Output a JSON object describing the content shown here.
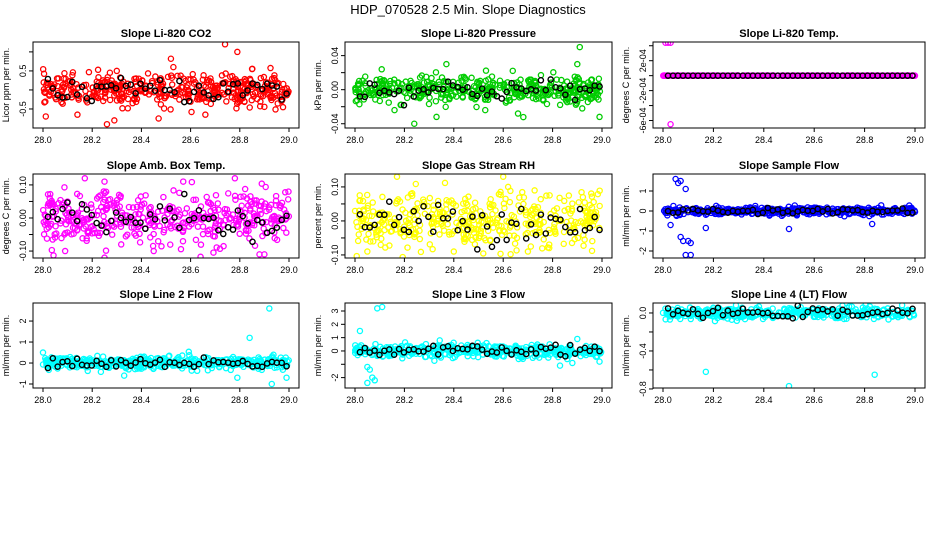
{
  "title": "HDP_070528  2.5 Min. Slope Diagnostics",
  "chart_data": [
    {
      "type": "scatter",
      "title": "Slope Li-820 CO2",
      "ylabel": "Licor ppm per min.",
      "color": "#ff0000",
      "xlim": [
        28.0,
        29.0
      ],
      "xticks": [
        "28.0",
        "28.2",
        "28.4",
        "28.6",
        "28.8",
        "29.0"
      ],
      "ylim": [
        -1.0,
        1.26
      ],
      "yticks": [
        -0.5,
        0,
        0.5,
        1.0
      ],
      "ytick_labels": [
        "-0.5",
        "",
        "0.5",
        ""
      ],
      "outliers": [
        [
          28.74,
          1.2
        ],
        [
          28.79,
          1.0
        ],
        [
          28.52,
          0.82
        ],
        [
          28.53,
          0.6
        ],
        [
          28.3,
          0.5
        ],
        [
          28.85,
          0.55
        ],
        [
          28.26,
          -0.9
        ],
        [
          28.29,
          -0.8
        ],
        [
          28.47,
          -0.75
        ],
        [
          28.14,
          -0.65
        ],
        [
          28.66,
          -0.65
        ]
      ]
    },
    {
      "type": "scatter",
      "title": "Slope Li-820 Pressure",
      "ylabel": "kPa per min.",
      "color": "#00cc00",
      "xlim": [
        28.0,
        29.0
      ],
      "xticks": [
        "28.0",
        "28.2",
        "28.4",
        "28.6",
        "28.8",
        "29.0"
      ],
      "ylim": [
        -0.045,
        0.056
      ],
      "yticks": [
        -0.04,
        -0.02,
        0,
        0.02,
        0.04
      ],
      "ytick_labels": [
        "-0.04",
        "",
        "0.00",
        "",
        "0.04"
      ],
      "outliers": [
        [
          28.91,
          0.05
        ],
        [
          28.9,
          0.03
        ],
        [
          28.37,
          0.03
        ],
        [
          28.24,
          -0.04
        ],
        [
          28.99,
          -0.032
        ],
        [
          28.66,
          -0.028
        ],
        [
          28.33,
          -0.032
        ],
        [
          28.16,
          -0.024
        ],
        [
          28.92,
          -0.022
        ]
      ]
    },
    {
      "type": "scatter",
      "title": "Slope Li-820 Temp.",
      "ylabel": "degrees C per min.",
      "color": "#ff00ff",
      "xlim": [
        28.0,
        29.0
      ],
      "xticks": [
        "28.0",
        "28.2",
        "28.4",
        "28.6",
        "28.8",
        "29.0"
      ],
      "ylim": [
        -0.0007,
        0.00045
      ],
      "yticks": [
        -0.0006,
        -0.0004,
        -0.0002,
        0,
        0.0002,
        0.0004
      ],
      "ytick_labels": [
        "-6e-04",
        "",
        "-2e-04",
        "",
        "2e-04",
        ""
      ],
      "outliers": [
        [
          28.01,
          0.00044
        ],
        [
          28.02,
          0.00044
        ],
        [
          28.03,
          0.00044
        ],
        [
          28.03,
          -0.00065
        ]
      ]
    },
    {
      "type": "scatter",
      "title": "Slope Amb. Box Temp.",
      "ylabel": "degrees C per min.",
      "color": "#ff00ff",
      "xlim": [
        28.0,
        29.0
      ],
      "xticks": [
        "28.0",
        "28.2",
        "28.4",
        "28.6",
        "28.8",
        "29.0"
      ],
      "ylim": [
        -0.121,
        0.133
      ],
      "yticks": [
        -0.1,
        -0.05,
        0,
        0.05,
        0.1
      ],
      "ytick_labels": [
        "-0.10",
        "",
        "0.00",
        "",
        "0.10"
      ],
      "outliers": [
        [
          28.17,
          0.12
        ],
        [
          28.25,
          0.11
        ],
        [
          28.78,
          0.12
        ],
        [
          28.57,
          0.11
        ],
        [
          28.25,
          -0.12
        ],
        [
          28.88,
          -0.11
        ],
        [
          28.9,
          -0.11
        ],
        [
          28.09,
          -0.1
        ],
        [
          28.45,
          -0.1
        ]
      ]
    },
    {
      "type": "scatter",
      "title": "Slope Gas Stream RH",
      "ylabel": "percent per min.",
      "color": "#ffff00",
      "xlim": [
        28.0,
        29.0
      ],
      "xticks": [
        "28.0",
        "28.2",
        "28.4",
        "28.6",
        "28.8",
        "29.0"
      ],
      "ylim": [
        -0.109,
        0.138
      ],
      "yticks": [
        -0.1,
        -0.05,
        0,
        0.05,
        0.1
      ],
      "ytick_labels": [
        "-0.10",
        "",
        "0.00",
        "",
        "0.10"
      ],
      "outliers": [
        [
          28.17,
          0.13
        ],
        [
          28.6,
          0.13
        ],
        [
          28.62,
          0.1
        ],
        [
          28.05,
          -0.09
        ],
        [
          28.4,
          -0.09
        ],
        [
          28.7,
          -0.09
        ]
      ]
    },
    {
      "type": "scatter",
      "title": "Slope Sample Flow",
      "ylabel": "ml/min per min.",
      "color": "#0000ff",
      "xlim": [
        28.0,
        29.0
      ],
      "xticks": [
        "28.0",
        "28.2",
        "28.4",
        "28.6",
        "28.8",
        "29.0"
      ],
      "ylim": [
        -2.35,
        1.85
      ],
      "yticks": [
        -2,
        -1,
        0,
        1
      ],
      "ytick_labels": [
        "-2",
        "-1",
        "0",
        "1"
      ],
      "outliers": [
        [
          28.05,
          1.6
        ],
        [
          28.07,
          1.5
        ],
        [
          28.06,
          1.4
        ],
        [
          28.09,
          1.1
        ],
        [
          28.07,
          -1.3
        ],
        [
          28.08,
          -1.5
        ],
        [
          28.1,
          -1.5
        ],
        [
          28.11,
          -1.6
        ],
        [
          28.09,
          -2.2
        ],
        [
          28.11,
          -2.2
        ],
        [
          28.5,
          -0.9
        ],
        [
          28.17,
          -0.85
        ],
        [
          28.83,
          -0.65
        ],
        [
          28.03,
          -0.7
        ]
      ]
    },
    {
      "type": "scatter",
      "title": "Slope Line 2 Flow",
      "ylabel": "ml/min per min.",
      "color": "#00ffff",
      "xlim": [
        28.0,
        29.0
      ],
      "xticks": [
        "28.0",
        "28.2",
        "28.4",
        "28.6",
        "28.8",
        "29.0"
      ],
      "ylim": [
        -1.19,
        2.86
      ],
      "yticks": [
        -1,
        0,
        1,
        2
      ],
      "ytick_labels": [
        "-1",
        "0",
        "1",
        "2"
      ],
      "outliers": [
        [
          28.92,
          2.6
        ],
        [
          28.84,
          1.2
        ],
        [
          28.93,
          -1.0
        ],
        [
          28.99,
          -0.7
        ],
        [
          28.79,
          -0.7
        ],
        [
          28.33,
          -0.6
        ],
        [
          28.0,
          0.5
        ]
      ]
    },
    {
      "type": "scatter",
      "title": "Slope Line 3 Flow",
      "ylabel": "ml/min per min.",
      "color": "#00ffff",
      "xlim": [
        28.0,
        29.0
      ],
      "xticks": [
        "28.0",
        "28.2",
        "28.4",
        "28.6",
        "28.8",
        "29.0"
      ],
      "ylim": [
        -2.78,
        3.6
      ],
      "yticks": [
        -2,
        -1,
        0,
        1,
        2,
        3
      ],
      "ytick_labels": [
        "-2",
        "",
        "0",
        "1",
        "2",
        "3"
      ],
      "outliers": [
        [
          28.09,
          3.2
        ],
        [
          28.11,
          3.3
        ],
        [
          28.02,
          1.5
        ],
        [
          28.05,
          -1.2
        ],
        [
          28.06,
          -1.4
        ],
        [
          28.05,
          -2.4
        ],
        [
          28.07,
          -2.0
        ],
        [
          28.08,
          -2.2
        ],
        [
          28.83,
          -1.1
        ],
        [
          28.88,
          -0.9
        ],
        [
          28.99,
          -0.8
        ],
        [
          28.9,
          0.9
        ]
      ]
    },
    {
      "type": "scatter",
      "title": "Slope Line 4 (LT) Flow",
      "ylabel": "ml/min per min.",
      "color": "#00ffff",
      "xlim": [
        28.0,
        29.0
      ],
      "xticks": [
        "28.0",
        "28.2",
        "28.4",
        "28.6",
        "28.8",
        "29.0"
      ],
      "ylim": [
        -0.79,
        0.105
      ],
      "yticks": [
        -0.8,
        -0.6,
        -0.4,
        -0.2,
        0
      ],
      "ytick_labels": [
        "-0.8",
        "",
        "-0.4",
        "",
        "0.0"
      ],
      "outliers": [
        [
          28.17,
          -0.62
        ],
        [
          28.5,
          -0.77
        ],
        [
          28.84,
          -0.65
        ]
      ]
    }
  ]
}
